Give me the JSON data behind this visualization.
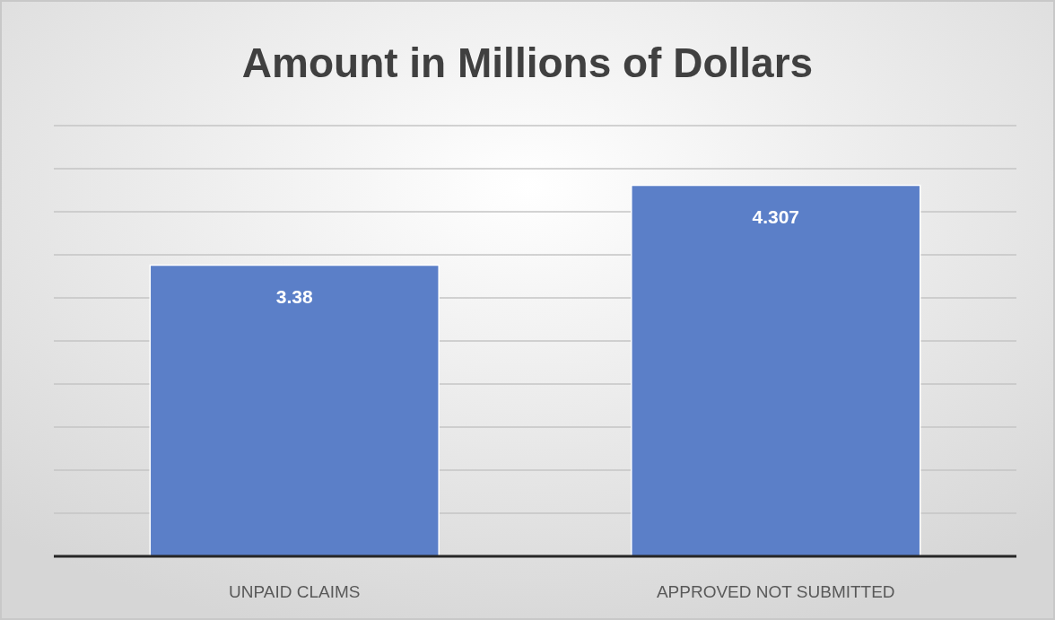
{
  "chart_data": {
    "type": "bar",
    "title": "Amount in Millions of Dollars",
    "categories": [
      "UNPAID CLAIMS",
      "APPROVED NOT SUBMITTED"
    ],
    "values": [
      3.38,
      4.307
    ],
    "color": "#5b7fc8",
    "ylim": [
      0,
      5
    ],
    "yticks": [
      {
        "value": 0,
        "label": null
      },
      {
        "value": 0.5,
        "label": null
      },
      {
        "value": 1,
        "label": null
      },
      {
        "value": 1.5,
        "label": null
      },
      {
        "value": 2,
        "label": null
      },
      {
        "value": 2.5,
        "label": null
      },
      {
        "value": 3,
        "label": null
      },
      {
        "value": 3.5,
        "label": null
      },
      {
        "value": 4,
        "label": null
      },
      {
        "value": 4.5,
        "label": null
      },
      {
        "value": 5,
        "label": null
      }
    ],
    "grid": "y",
    "data_labels": true,
    "tick_labels": "x"
  }
}
